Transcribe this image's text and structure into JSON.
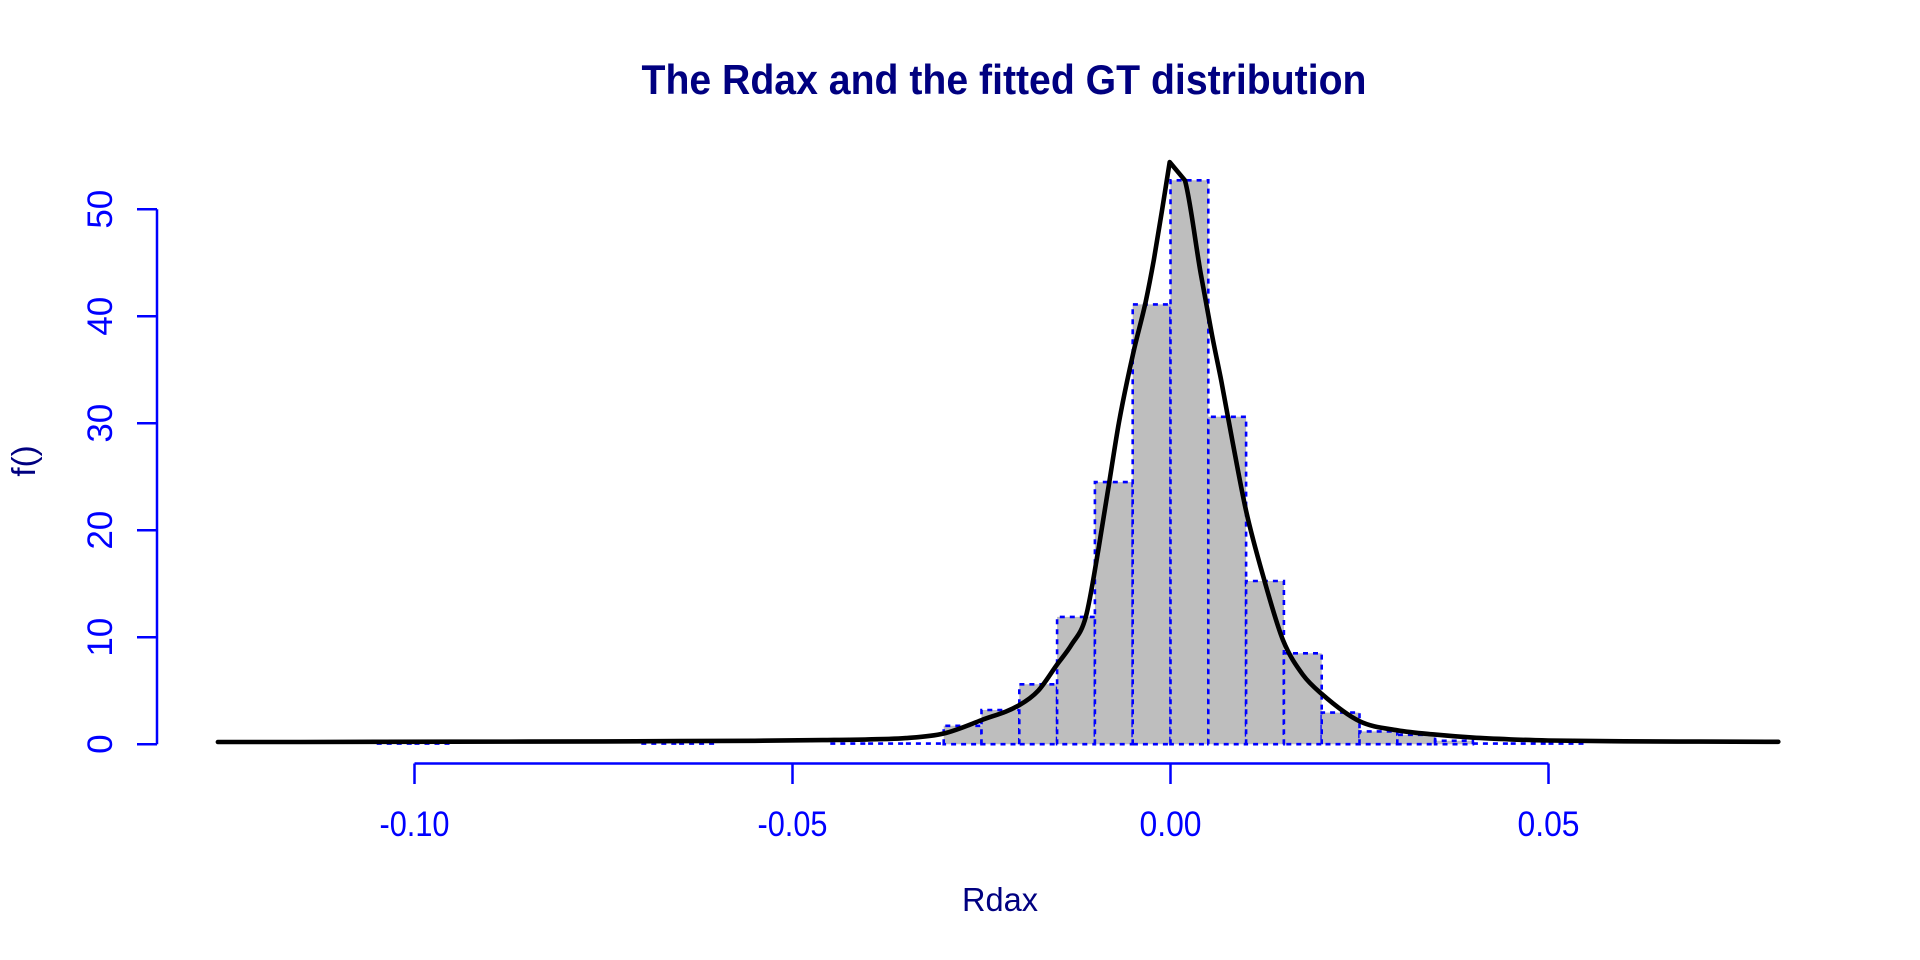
{
  "title": "The Rdax and the fitted GT distribution",
  "colors": {
    "title": "#000080",
    "axis": "#0000FF",
    "tick_labels": "#0000FF",
    "bar_fill": "#BEBEBE",
    "bar_border": "#0000FF",
    "curve": "#000000",
    "background": "#FFFFFF"
  },
  "chart_data": {
    "type": "bar",
    "subtype": "histogram-with-fitted-density",
    "title": "The Rdax and the fitted GT distribution",
    "xlabel": "Rdax",
    "ylabel": "f()",
    "xlim": [
      -0.134,
      0.093
    ],
    "ylim": [
      0,
      54.5
    ],
    "grid": false,
    "legend": "none",
    "x_ticks": {
      "values": [
        -0.1,
        -0.05,
        0.0,
        0.05
      ],
      "labels": [
        "-0.10",
        "-0.05",
        "0.00",
        "0.05"
      ]
    },
    "y_ticks": {
      "values": [
        0,
        10,
        20,
        30,
        40,
        50
      ],
      "labels": [
        "0",
        "10",
        "20",
        "30",
        "40",
        "50"
      ]
    },
    "bin_width": 0.005,
    "bin_edges": [
      -0.105,
      -0.1,
      -0.095,
      -0.09,
      -0.085,
      -0.08,
      -0.075,
      -0.07,
      -0.065,
      -0.06,
      -0.055,
      -0.05,
      -0.045,
      -0.04,
      -0.035,
      -0.03,
      -0.025,
      -0.02,
      -0.015,
      -0.01,
      -0.005,
      0.0,
      0.005,
      0.01,
      0.015,
      0.02,
      0.025,
      0.03,
      0.035,
      0.04,
      0.045,
      0.05,
      0.055
    ],
    "densities": [
      0.11,
      0.11,
      0,
      0,
      0,
      0,
      0,
      0.11,
      0.11,
      0,
      0,
      0,
      0.11,
      0.11,
      0.11,
      1.72,
      3.2,
      5.6,
      11.9,
      24.5,
      41.1,
      52.7,
      30.6,
      15.25,
      8.5,
      2.95,
      1.2,
      0.88,
      0.32,
      0.11,
      0.11,
      0.11
    ],
    "series": [
      {
        "name": "fitted GT density",
        "type": "line",
        "points": [
          [
            -0.126,
            0.21
          ],
          [
            -0.115,
            0.21
          ],
          [
            -0.105,
            0.22
          ],
          [
            -0.095,
            0.23
          ],
          [
            -0.085,
            0.24
          ],
          [
            -0.075,
            0.26
          ],
          [
            -0.065,
            0.29
          ],
          [
            -0.055,
            0.32
          ],
          [
            -0.046,
            0.38
          ],
          [
            -0.04,
            0.45
          ],
          [
            -0.035,
            0.57
          ],
          [
            -0.03,
            1.0
          ],
          [
            -0.025,
            2.25
          ],
          [
            -0.02,
            3.65
          ],
          [
            -0.0175,
            5.0
          ],
          [
            -0.015,
            7.45
          ],
          [
            -0.0131,
            9.3
          ],
          [
            -0.0112,
            11.9
          ],
          [
            -0.00954,
            18.2
          ],
          [
            -0.0081,
            24.5
          ],
          [
            -0.00681,
            30.1
          ],
          [
            -0.00495,
            36.5
          ],
          [
            -0.0033,
            41.3
          ],
          [
            -0.0022,
            45.3
          ],
          [
            -0.0011,
            50.0
          ],
          [
            -0.0001,
            54.4
          ],
          [
            0.0019,
            52.7
          ],
          [
            0.004,
            44.0
          ],
          [
            0.0055,
            38.2
          ],
          [
            0.0067,
            34.0
          ],
          [
            0.0082,
            28.3
          ],
          [
            0.01,
            21.8
          ],
          [
            0.0123,
            15.6
          ],
          [
            0.0149,
            9.7
          ],
          [
            0.0175,
            6.5
          ],
          [
            0.02,
            4.7
          ],
          [
            0.025,
            2.15
          ],
          [
            0.03,
            1.3
          ],
          [
            0.035,
            0.9
          ],
          [
            0.04,
            0.62
          ],
          [
            0.045,
            0.45
          ],
          [
            0.05,
            0.35
          ],
          [
            0.06,
            0.27
          ],
          [
            0.07,
            0.24
          ],
          [
            0.0804,
            0.22
          ]
        ]
      }
    ]
  }
}
